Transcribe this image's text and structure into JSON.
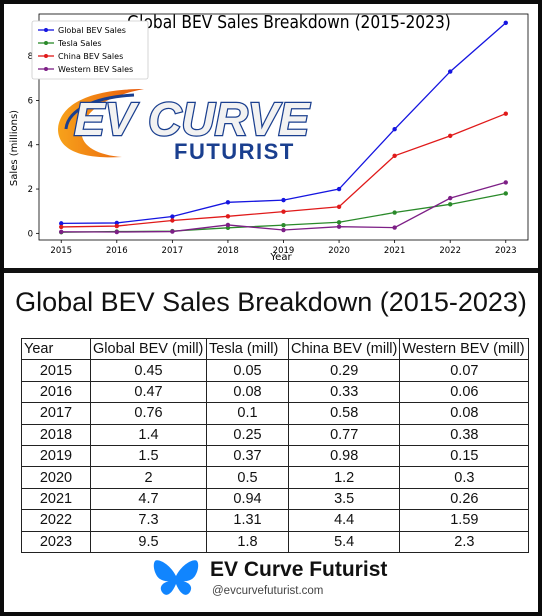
{
  "chart_data": {
    "type": "line",
    "title": "Global BEV Sales Breakdown (2015-2023)",
    "xlabel": "Year",
    "ylabel": "Sales (millions)",
    "x": [
      2015,
      2016,
      2017,
      2018,
      2019,
      2020,
      2021,
      2022,
      2023
    ],
    "ylim": [
      -0.3,
      9.9
    ],
    "yticks": [
      0,
      2,
      4,
      6,
      8
    ],
    "grid": false,
    "legend_position": "top-left",
    "series": [
      {
        "name": "Global BEV Sales",
        "color": "#1515e0",
        "values": [
          0.45,
          0.47,
          0.76,
          1.4,
          1.5,
          2,
          4.7,
          7.3,
          9.5
        ]
      },
      {
        "name": "Tesla Sales",
        "color": "#2a8a2a",
        "values": [
          0.05,
          0.08,
          0.1,
          0.25,
          0.37,
          0.5,
          0.94,
          1.31,
          1.8
        ]
      },
      {
        "name": "China BEV Sales",
        "color": "#e01a1a",
        "values": [
          0.29,
          0.33,
          0.58,
          0.77,
          0.98,
          1.2,
          3.5,
          4.4,
          5.4
        ]
      },
      {
        "name": "Western BEV Sales",
        "color": "#7d1f86",
        "values": [
          0.07,
          0.06,
          0.08,
          0.38,
          0.15,
          0.3,
          0.26,
          1.59,
          2.3
        ]
      }
    ]
  },
  "logo": {
    "line1": "EV CURVE",
    "line2": "FUTURIST"
  },
  "table": {
    "title": "Global BEV Sales Breakdown (2015-2023)",
    "headers": [
      "Year",
      "Global BEV (mill)",
      "Tesla (mill)",
      "China BEV (mill)",
      "Western BEV (mill)"
    ],
    "rows": [
      [
        "2015",
        "0.45",
        "0.05",
        "0.29",
        "0.07"
      ],
      [
        "2016",
        "0.47",
        "0.08",
        "0.33",
        "0.06"
      ],
      [
        "2017",
        "0.76",
        "0.1",
        "0.58",
        "0.08"
      ],
      [
        "2018",
        "1.4",
        "0.25",
        "0.77",
        "0.38"
      ],
      [
        "2019",
        "1.5",
        "0.37",
        "0.98",
        "0.15"
      ],
      [
        "2020",
        "2",
        "0.5",
        "1.2",
        "0.3"
      ],
      [
        "2021",
        "4.7",
        "0.94",
        "3.5",
        "0.26"
      ],
      [
        "2022",
        "7.3",
        "1.31",
        "4.4",
        "1.59"
      ],
      [
        "2023",
        "9.5",
        "1.8",
        "5.4",
        "2.3"
      ]
    ]
  },
  "footer": {
    "name": "EV Curve Futurist",
    "handle": "@evcurvefuturist.com",
    "icon": "butterfly-icon",
    "icon_color": "#1185fe"
  }
}
